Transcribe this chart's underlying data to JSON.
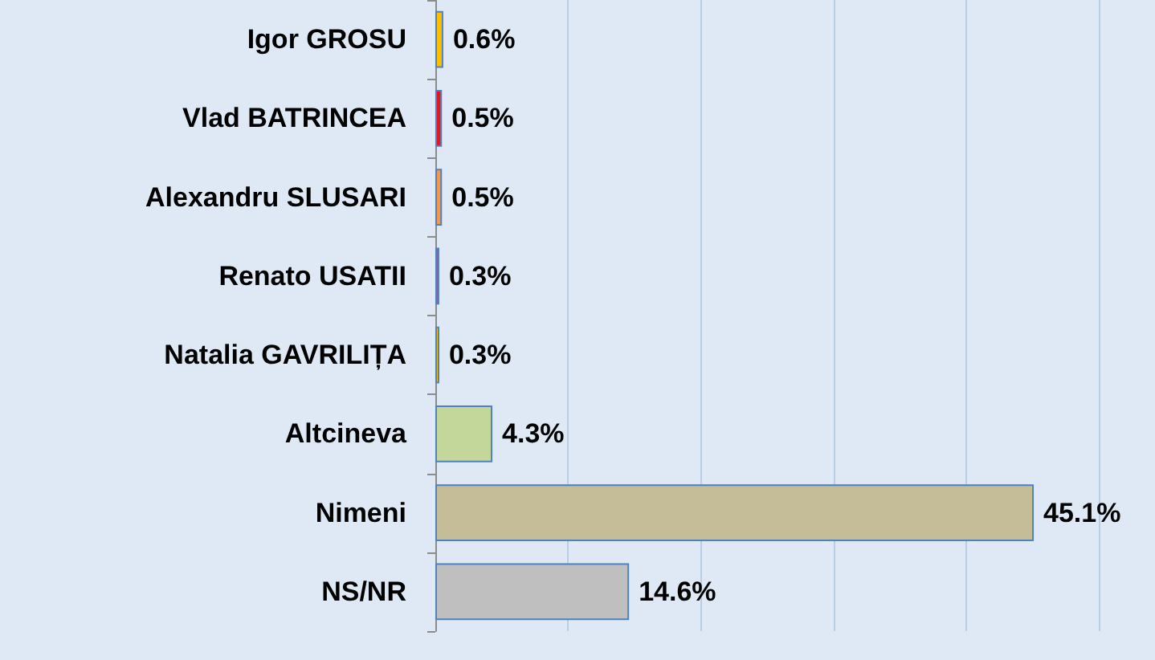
{
  "chart_data": {
    "type": "bar",
    "orientation": "horizontal",
    "categories": [
      "Igor GROSU",
      "Vlad BATRINCEA",
      "Alexandru SLUSARI",
      "Renato USATII",
      "Natalia GAVRILIȚA",
      "Altcineva",
      "Nimeni",
      "NS/NR"
    ],
    "values": [
      0.6,
      0.5,
      0.5,
      0.3,
      0.3,
      4.3,
      45.1,
      14.6
    ],
    "colors": [
      "#ffc000",
      "#e8141e",
      "#f79646",
      "#8064a2",
      "#ffc000",
      "#c4d79b",
      "#c4bd97",
      "#bfbfbf"
    ],
    "value_labels": [
      "0.6%",
      "0.5%",
      "0.5%",
      "0.3%",
      "0.3%",
      "4.3%",
      "45.1%",
      "14.6%"
    ],
    "xlim": [
      0,
      50
    ],
    "xticks": [
      {
        "value": 0,
        "label": null
      },
      {
        "value": 10,
        "label": null
      },
      {
        "value": 20,
        "label": null
      },
      {
        "value": 30,
        "label": null
      },
      {
        "value": 40,
        "label": null
      },
      {
        "value": 50,
        "label": null
      }
    ],
    "grid": "x",
    "tick_labels": "y"
  }
}
